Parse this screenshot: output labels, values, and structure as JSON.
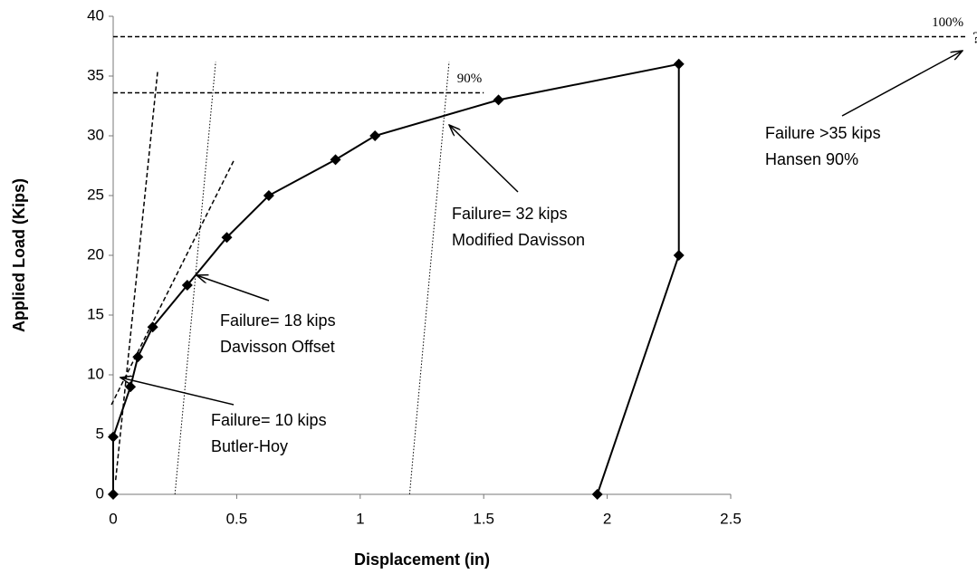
{
  "chart_data": {
    "type": "line",
    "x_label": "Displacement (in)",
    "y_label": "Applied Load (Kips)",
    "xlim": [
      0,
      2.5
    ],
    "ylim": [
      0,
      40
    ],
    "xticks": [
      0,
      0.5,
      1,
      1.5,
      2,
      2.5
    ],
    "yticks": [
      0,
      5,
      10,
      15,
      20,
      25,
      30,
      35,
      40
    ],
    "series": [
      {
        "color": "#000000",
        "x": [
          0,
          0,
          0.07,
          0.1,
          0.16,
          0.3,
          0.46,
          0.63,
          0.9,
          1.06,
          1.56,
          2.29,
          2.29,
          1.96
        ],
        "values": [
          0,
          4.8,
          9,
          11.5,
          14,
          17.5,
          21.5,
          25,
          28,
          30,
          33,
          36,
          20,
          0
        ]
      }
    ],
    "reference_lines": [
      {
        "style": "dashed",
        "x": [
          0,
          3.45
        ],
        "y": [
          38.3,
          38.3
        ],
        "label": "100%",
        "end_label": "?"
      },
      {
        "style": "dashed",
        "x": [
          0,
          1.5
        ],
        "y": [
          33.6,
          33.6
        ],
        "label": "90%"
      },
      {
        "style": "dashed",
        "x": [
          0.01,
          0.18
        ],
        "y": [
          1.2,
          35.4
        ]
      },
      {
        "style": "dashed",
        "x": [
          -0.007,
          0.49
        ],
        "y": [
          7.5,
          28
        ]
      },
      {
        "style": "dotted",
        "x": [
          0.25,
          0.415
        ],
        "y": [
          0,
          36.2
        ]
      },
      {
        "style": "dotted",
        "x": [
          1.2,
          1.36
        ],
        "y": [
          0,
          36.2
        ]
      }
    ],
    "annotations": [
      {
        "text": [
          "Failure= 10 kips",
          "Butler-Hoy"
        ]
      },
      {
        "text": [
          "Failure= 18 kips",
          "Davisson Offset"
        ]
      },
      {
        "text": [
          "Failure= 32 kips",
          "Modified Davisson"
        ]
      },
      {
        "text": [
          "Failure >35 kips",
          "Hansen 90%"
        ]
      }
    ]
  }
}
